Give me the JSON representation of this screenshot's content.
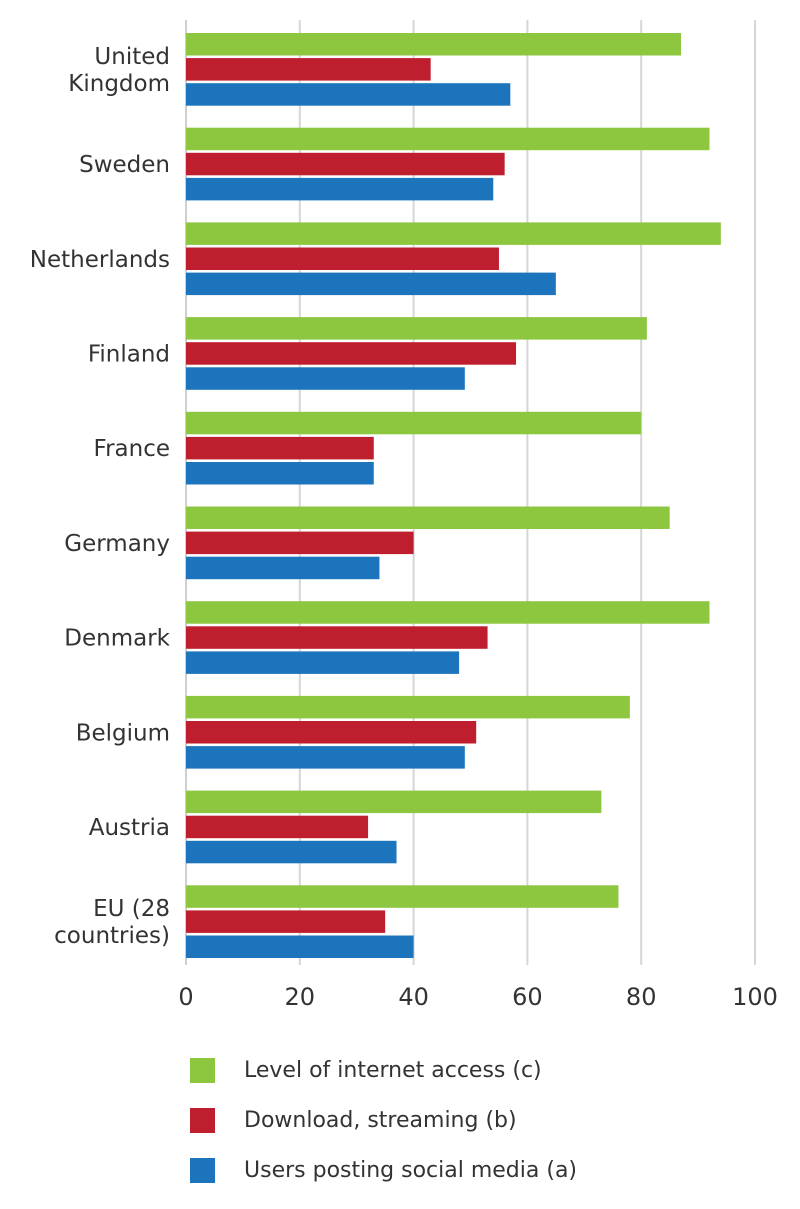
{
  "chart_data": {
    "type": "bar",
    "orientation": "horizontal",
    "title": "",
    "xlabel": "",
    "ylabel": "",
    "xlim": [
      0,
      100
    ],
    "xticks": [
      0,
      20,
      40,
      60,
      80,
      100
    ],
    "grid": true,
    "legend_position": "bottom",
    "categories": [
      [
        "United",
        "Kingdom"
      ],
      [
        "Sweden"
      ],
      [
        "Netherlands"
      ],
      [
        "Finland"
      ],
      [
        "France"
      ],
      [
        "Germany"
      ],
      [
        "Denmark"
      ],
      [
        "Belgium"
      ],
      [
        "Austria"
      ],
      [
        "EU (28",
        "countries)"
      ]
    ],
    "series": [
      {
        "name": "Level of internet access (c)",
        "color": "#8dc63f",
        "values": [
          87,
          92,
          94,
          81,
          80,
          85,
          92,
          78,
          73,
          76
        ]
      },
      {
        "name": "Download, streaming (b)",
        "color": "#be1e2d",
        "values": [
          43,
          56,
          55,
          58,
          33,
          40,
          53,
          51,
          32,
          35
        ]
      },
      {
        "name": "Users posting social media (a)",
        "color": "#1c75bc",
        "values": [
          57,
          54,
          65,
          49,
          33,
          34,
          48,
          49,
          37,
          40
        ]
      }
    ]
  }
}
